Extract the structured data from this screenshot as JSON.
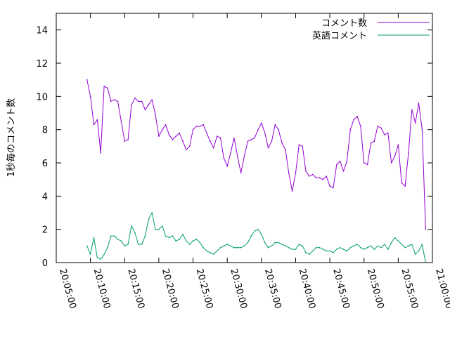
{
  "chart_data": {
    "type": "line",
    "ylabel": "1秒毎のコメント数",
    "xlabel": "",
    "ylim": [
      0,
      15
    ],
    "xlim": [
      "20:05:00",
      "21:00:00"
    ],
    "y_ticks": [
      0,
      2,
      4,
      6,
      8,
      10,
      12,
      14
    ],
    "x_ticks": [
      "20:05:00",
      "20:10:00",
      "20:15:00",
      "20:20:00",
      "20:25:00",
      "20:30:00",
      "20:35:00",
      "20:40:00",
      "20:45:00",
      "20:50:00",
      "20:55:00",
      "21:00:00"
    ],
    "legend_position": "top-right",
    "grid": false,
    "series": [
      {
        "name": "コメント数",
        "color": "#9400d3",
        "points": [
          [
            "20:09:30",
            11.0
          ],
          [
            "20:10:00",
            10.0
          ],
          [
            "20:10:30",
            8.3
          ],
          [
            "20:11:00",
            8.6
          ],
          [
            "20:11:30",
            6.6
          ],
          [
            "20:12:00",
            10.6
          ],
          [
            "20:12:30",
            10.5
          ],
          [
            "20:13:00",
            9.7
          ],
          [
            "20:13:30",
            9.8
          ],
          [
            "20:14:00",
            9.7
          ],
          [
            "20:14:30",
            8.5
          ],
          [
            "20:15:00",
            7.3
          ],
          [
            "20:15:30",
            7.4
          ],
          [
            "20:16:00",
            9.5
          ],
          [
            "20:16:30",
            9.9
          ],
          [
            "20:17:00",
            9.7
          ],
          [
            "20:17:30",
            9.7
          ],
          [
            "20:18:00",
            9.2
          ],
          [
            "20:18:30",
            9.5
          ],
          [
            "20:19:00",
            9.8
          ],
          [
            "20:19:30",
            8.9
          ],
          [
            "20:20:00",
            7.6
          ],
          [
            "20:20:30",
            8.0
          ],
          [
            "20:21:00",
            8.3
          ],
          [
            "20:21:30",
            7.7
          ],
          [
            "20:22:00",
            7.4
          ],
          [
            "20:22:30",
            7.6
          ],
          [
            "20:23:00",
            7.8
          ],
          [
            "20:23:30",
            7.3
          ],
          [
            "20:24:00",
            6.8
          ],
          [
            "20:24:30",
            7.0
          ],
          [
            "20:25:00",
            8.0
          ],
          [
            "20:25:30",
            8.2
          ],
          [
            "20:26:00",
            8.2
          ],
          [
            "20:26:30",
            8.3
          ],
          [
            "20:27:00",
            7.8
          ],
          [
            "20:27:30",
            7.3
          ],
          [
            "20:28:00",
            6.9
          ],
          [
            "20:28:30",
            7.6
          ],
          [
            "20:29:00",
            7.5
          ],
          [
            "20:29:30",
            6.3
          ],
          [
            "20:30:00",
            5.8
          ],
          [
            "20:30:30",
            6.6
          ],
          [
            "20:31:00",
            7.5
          ],
          [
            "20:31:30",
            6.4
          ],
          [
            "20:32:00",
            5.4
          ],
          [
            "20:32:30",
            6.4
          ],
          [
            "20:33:00",
            7.3
          ],
          [
            "20:33:30",
            7.4
          ],
          [
            "20:34:00",
            7.5
          ],
          [
            "20:34:30",
            8.0
          ],
          [
            "20:35:00",
            8.4
          ],
          [
            "20:35:30",
            7.8
          ],
          [
            "20:36:00",
            6.9
          ],
          [
            "20:36:30",
            7.3
          ],
          [
            "20:37:00",
            8.3
          ],
          [
            "20:37:30",
            8.0
          ],
          [
            "20:38:00",
            7.2
          ],
          [
            "20:38:30",
            6.8
          ],
          [
            "20:39:00",
            5.4
          ],
          [
            "20:39:30",
            4.3
          ],
          [
            "20:40:00",
            5.4
          ],
          [
            "20:40:30",
            7.1
          ],
          [
            "20:41:00",
            7.0
          ],
          [
            "20:41:30",
            5.5
          ],
          [
            "20:42:00",
            5.2
          ],
          [
            "20:42:30",
            5.3
          ],
          [
            "20:43:00",
            5.1
          ],
          [
            "20:43:30",
            5.1
          ],
          [
            "20:44:00",
            5.0
          ],
          [
            "20:44:30",
            5.2
          ],
          [
            "20:45:00",
            4.6
          ],
          [
            "20:45:30",
            4.5
          ],
          [
            "20:46:00",
            5.9
          ],
          [
            "20:46:30",
            6.1
          ],
          [
            "20:47:00",
            5.5
          ],
          [
            "20:47:30",
            6.1
          ],
          [
            "20:48:00",
            8.0
          ],
          [
            "20:48:30",
            8.6
          ],
          [
            "20:49:00",
            8.8
          ],
          [
            "20:49:30",
            8.2
          ],
          [
            "20:50:00",
            6.0
          ],
          [
            "20:50:30",
            5.9
          ],
          [
            "20:51:00",
            7.2
          ],
          [
            "20:51:30",
            7.3
          ],
          [
            "20:52:00",
            8.2
          ],
          [
            "20:52:30",
            8.1
          ],
          [
            "20:53:00",
            7.7
          ],
          [
            "20:53:30",
            7.8
          ],
          [
            "20:54:00",
            6.0
          ],
          [
            "20:54:30",
            6.4
          ],
          [
            "20:55:00",
            7.1
          ],
          [
            "20:55:30",
            4.8
          ],
          [
            "20:56:00",
            4.6
          ],
          [
            "20:56:30",
            6.6
          ],
          [
            "20:57:00",
            9.2
          ],
          [
            "20:57:30",
            8.4
          ],
          [
            "20:58:00",
            9.6
          ],
          [
            "20:58:30",
            8.0
          ],
          [
            "20:59:00",
            2.0
          ]
        ]
      },
      {
        "name": "英語コメント",
        "color": "#009e73",
        "points": [
          [
            "20:09:30",
            1.0
          ],
          [
            "20:10:00",
            0.5
          ],
          [
            "20:10:30",
            1.5
          ],
          [
            "20:11:00",
            0.3
          ],
          [
            "20:11:30",
            0.2
          ],
          [
            "20:12:00",
            0.5
          ],
          [
            "20:12:30",
            0.9
          ],
          [
            "20:13:00",
            1.6
          ],
          [
            "20:13:30",
            1.6
          ],
          [
            "20:14:00",
            1.4
          ],
          [
            "20:14:30",
            1.3
          ],
          [
            "20:15:00",
            1.0
          ],
          [
            "20:15:30",
            1.1
          ],
          [
            "20:16:00",
            2.2
          ],
          [
            "20:16:30",
            1.8
          ],
          [
            "20:17:00",
            1.1
          ],
          [
            "20:17:30",
            1.1
          ],
          [
            "20:18:00",
            1.6
          ],
          [
            "20:18:30",
            2.6
          ],
          [
            "20:19:00",
            3.0
          ],
          [
            "20:19:30",
            2.0
          ],
          [
            "20:20:00",
            2.0
          ],
          [
            "20:20:30",
            2.2
          ],
          [
            "20:21:00",
            1.6
          ],
          [
            "20:21:30",
            1.5
          ],
          [
            "20:22:00",
            1.6
          ],
          [
            "20:22:30",
            1.3
          ],
          [
            "20:23:00",
            1.4
          ],
          [
            "20:23:30",
            1.7
          ],
          [
            "20:24:00",
            1.3
          ],
          [
            "20:24:30",
            1.1
          ],
          [
            "20:25:00",
            1.3
          ],
          [
            "20:25:30",
            1.4
          ],
          [
            "20:26:00",
            1.2
          ],
          [
            "20:26:30",
            0.9
          ],
          [
            "20:27:00",
            0.7
          ],
          [
            "20:27:30",
            0.6
          ],
          [
            "20:28:00",
            0.5
          ],
          [
            "20:28:30",
            0.7
          ],
          [
            "20:29:00",
            0.9
          ],
          [
            "20:29:30",
            1.0
          ],
          [
            "20:30:00",
            1.1
          ],
          [
            "20:30:30",
            1.0
          ],
          [
            "20:31:00",
            0.9
          ],
          [
            "20:31:30",
            0.9
          ],
          [
            "20:32:00",
            0.9
          ],
          [
            "20:32:30",
            1.0
          ],
          [
            "20:33:00",
            1.2
          ],
          [
            "20:33:30",
            1.6
          ],
          [
            "20:34:00",
            1.9
          ],
          [
            "20:34:30",
            2.0
          ],
          [
            "20:35:00",
            1.7
          ],
          [
            "20:35:30",
            1.2
          ],
          [
            "20:36:00",
            0.9
          ],
          [
            "20:36:30",
            1.0
          ],
          [
            "20:37:00",
            1.2
          ],
          [
            "20:37:30",
            1.2
          ],
          [
            "20:38:00",
            1.1
          ],
          [
            "20:38:30",
            1.0
          ],
          [
            "20:39:00",
            0.9
          ],
          [
            "20:39:30",
            0.8
          ],
          [
            "20:40:00",
            0.8
          ],
          [
            "20:40:30",
            1.1
          ],
          [
            "20:41:00",
            1.0
          ],
          [
            "20:41:30",
            0.6
          ],
          [
            "20:42:00",
            0.5
          ],
          [
            "20:42:30",
            0.7
          ],
          [
            "20:43:00",
            0.9
          ],
          [
            "20:43:30",
            0.9
          ],
          [
            "20:44:00",
            0.8
          ],
          [
            "20:44:30",
            0.7
          ],
          [
            "20:45:00",
            0.7
          ],
          [
            "20:45:30",
            0.6
          ],
          [
            "20:46:00",
            0.8
          ],
          [
            "20:46:30",
            0.9
          ],
          [
            "20:47:00",
            0.8
          ],
          [
            "20:47:30",
            0.7
          ],
          [
            "20:48:00",
            0.9
          ],
          [
            "20:48:30",
            1.0
          ],
          [
            "20:49:00",
            1.1
          ],
          [
            "20:49:30",
            0.9
          ],
          [
            "20:50:00",
            0.8
          ],
          [
            "20:50:30",
            0.9
          ],
          [
            "20:51:00",
            1.0
          ],
          [
            "20:51:30",
            0.8
          ],
          [
            "20:52:00",
            1.0
          ],
          [
            "20:52:30",
            0.9
          ],
          [
            "20:53:00",
            1.1
          ],
          [
            "20:53:30",
            0.8
          ],
          [
            "20:54:00",
            1.2
          ],
          [
            "20:54:30",
            1.5
          ],
          [
            "20:55:00",
            1.3
          ],
          [
            "20:55:30",
            1.1
          ],
          [
            "20:56:00",
            0.9
          ],
          [
            "20:56:30",
            1.0
          ],
          [
            "20:57:00",
            1.1
          ],
          [
            "20:57:30",
            0.5
          ],
          [
            "20:58:00",
            0.7
          ],
          [
            "20:58:30",
            1.1
          ],
          [
            "20:59:00",
            0.0
          ]
        ]
      }
    ]
  }
}
